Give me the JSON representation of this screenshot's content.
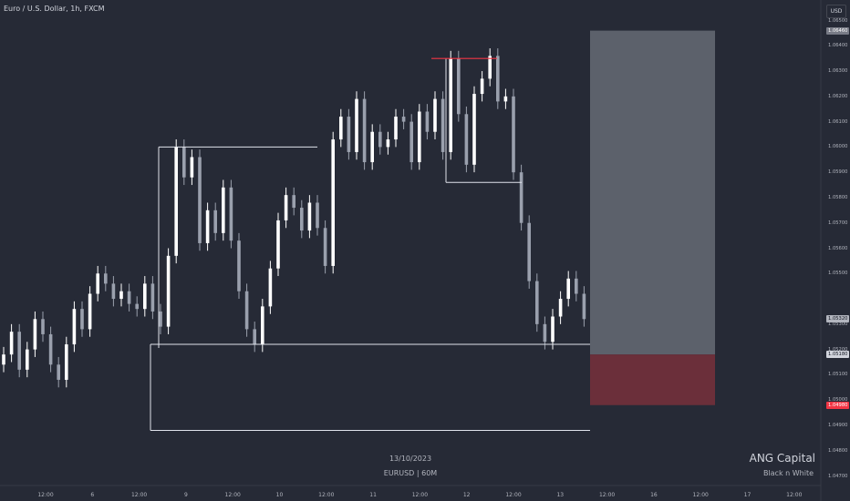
{
  "header": {
    "title": "Euro / U.S. Dollar, 1h, FXCM",
    "currency": "USD"
  },
  "watermark": {
    "date": "13/10/2023",
    "symbol": "EURUSD | 60M"
  },
  "branding": {
    "name": "ANG Capital",
    "subtitle": "Black n White"
  },
  "colors": {
    "background": "#262a36",
    "candle_up": "#ffffff",
    "candle_down": "#9aa0ad",
    "target_zone": "#5c616b",
    "stop_zone": "#6b2f3a",
    "high_line": "#f23645",
    "box_lines": "#e0e3eb"
  },
  "chart_data": {
    "type": "candlestick",
    "symbol": "EURUSD",
    "interval": "1h",
    "y_axis": {
      "range": [
        1.0467,
        1.0653
      ],
      "ticks": [
        "1.06500",
        "1.06400",
        "1.06300",
        "1.06200",
        "1.06100",
        "1.06000",
        "1.05900",
        "1.05800",
        "1.05700",
        "1.05600",
        "1.05500",
        "1.05300",
        "1.05200",
        "1.05100",
        "1.05000",
        "1.04900",
        "1.04800",
        "1.04700"
      ]
    },
    "x_axis": {
      "ticks": [
        "12:00",
        "6",
        "12:00",
        "9",
        "12:00",
        "10",
        "12:00",
        "11",
        "12:00",
        "12",
        "12:00",
        "13",
        "12:00",
        "16",
        "12:00",
        "17",
        "12:00"
      ]
    },
    "price_labels": [
      {
        "value": 1.0646,
        "text": "1.06460",
        "kind": "target"
      },
      {
        "value": 1.0532,
        "text": "1.05320",
        "kind": "last"
      },
      {
        "value": 1.0518,
        "text": "1.05180",
        "kind": "entry"
      },
      {
        "value": 1.0498,
        "text": "1.04980",
        "kind": "stop"
      }
    ],
    "position": {
      "target": 1.0646,
      "entry": 1.0518,
      "stop": 1.0498
    },
    "levels": {
      "high": 1.0635,
      "range_top": 1.06,
      "range_low": 1.0522,
      "sweep_low": 1.0488,
      "pullback_box_low": 1.0586
    },
    "candle_closes": [
      1.0518,
      1.0527,
      1.0512,
      1.052,
      1.0532,
      1.0526,
      1.0514,
      1.0508,
      1.0522,
      1.0536,
      1.0528,
      1.0542,
      1.055,
      1.0546,
      1.054,
      1.0543,
      1.0538,
      1.0536,
      1.0546,
      1.0535,
      1.0529,
      1.0557,
      1.06,
      1.0588,
      1.0596,
      1.0562,
      1.0575,
      1.0566,
      1.0584,
      1.0563,
      1.0543,
      1.0528,
      1.0522,
      1.0537,
      1.0552,
      1.0571,
      1.0581,
      1.0576,
      1.0567,
      1.0578,
      1.0568,
      1.0553,
      1.0603,
      1.0612,
      1.0598,
      1.0619,
      1.0594,
      1.0606,
      1.06,
      1.0603,
      1.0612,
      1.061,
      1.0594,
      1.0614,
      1.0606,
      1.0619,
      1.0598,
      1.0635,
      1.0613,
      1.0593,
      1.0621,
      1.0627,
      1.0636,
      1.0618,
      1.062,
      1.059,
      1.057,
      1.0547,
      1.053,
      1.0523,
      1.0533,
      1.054,
      1.0548,
      1.0542,
      1.0532
    ]
  }
}
